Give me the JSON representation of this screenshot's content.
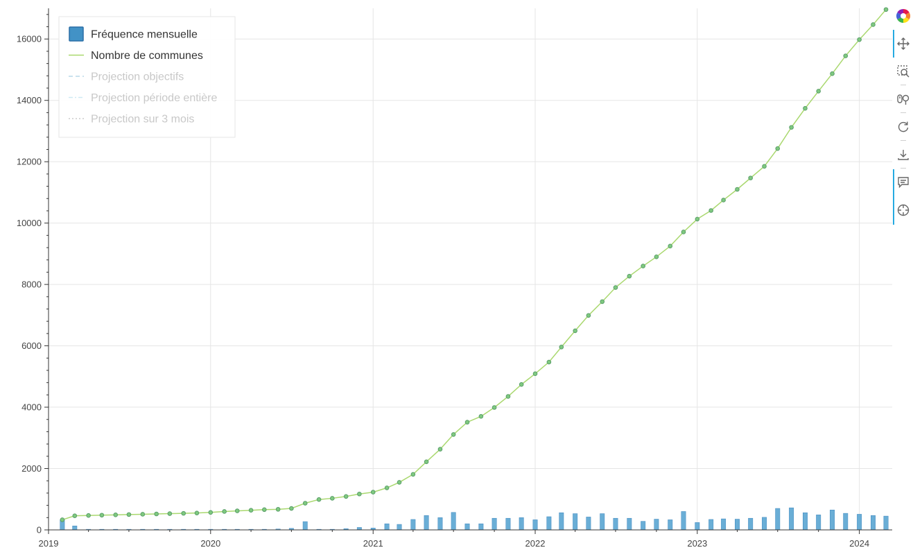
{
  "chart_data": {
    "type": "bar+line",
    "title": "",
    "xlabel": "",
    "ylabel": "",
    "x_axis": {
      "type": "datetime",
      "range": [
        "2019-01-01",
        "2024-03-15"
      ],
      "ticks": [
        {
          "date": "2019-01-01",
          "label": "2019"
        },
        {
          "date": "2020-01-01",
          "label": "2020"
        },
        {
          "date": "2021-01-01",
          "label": "2021"
        },
        {
          "date": "2022-01-01",
          "label": "2022"
        },
        {
          "date": "2023-01-01",
          "label": "2023"
        },
        {
          "date": "2024-01-01",
          "label": "2024"
        }
      ]
    },
    "y_axis": {
      "range": [
        0,
        17000
      ],
      "ticks": [
        {
          "value": 0,
          "label": "0"
        },
        {
          "value": 2000,
          "label": "2000"
        },
        {
          "value": 4000,
          "label": "4000"
        },
        {
          "value": 6000,
          "label": "6000"
        },
        {
          "value": 8000,
          "label": "8000"
        },
        {
          "value": 10000,
          "label": "10000"
        },
        {
          "value": 12000,
          "label": "12000"
        },
        {
          "value": 14000,
          "label": "14000"
        },
        {
          "value": 16000,
          "label": "16000"
        }
      ]
    },
    "grid": true,
    "legend_position": "top-left",
    "legend": [
      {
        "label": "Fréquence mensuelle",
        "glyph": "box",
        "color": "#4292c6",
        "muted": false
      },
      {
        "label": "Nombre de communes",
        "glyph": "line",
        "color": "#a9d86e",
        "muted": false
      },
      {
        "label": "Projection objectifs",
        "glyph": "dashed",
        "color": "#b9d8e8",
        "muted": true
      },
      {
        "label": "Projection période entière",
        "glyph": "dashdot",
        "color": "#cfe9f3",
        "muted": true
      },
      {
        "label": "Projection sur 3 mois",
        "glyph": "dotted",
        "color": "#cccccc",
        "muted": true
      }
    ],
    "colors": {
      "bar": "#6aaed6",
      "bar_stroke": "#3f87bf",
      "line": "#a9d86e",
      "marker_fill": "#7fc97f",
      "marker_stroke": "#5a9e6a"
    },
    "months": [
      "2019-02",
      "2019-03",
      "2019-04",
      "2019-05",
      "2019-06",
      "2019-07",
      "2019-08",
      "2019-09",
      "2019-10",
      "2019-11",
      "2019-12",
      "2020-01",
      "2020-02",
      "2020-03",
      "2020-04",
      "2020-05",
      "2020-06",
      "2020-07",
      "2020-08",
      "2020-09",
      "2020-10",
      "2020-11",
      "2020-12",
      "2021-01",
      "2021-02",
      "2021-03",
      "2021-04",
      "2021-05",
      "2021-06",
      "2021-07",
      "2021-08",
      "2021-09",
      "2021-10",
      "2021-11",
      "2021-12",
      "2022-01",
      "2022-02",
      "2022-03",
      "2022-04",
      "2022-05",
      "2022-06",
      "2022-07",
      "2022-08",
      "2022-09",
      "2022-10",
      "2022-11",
      "2022-12",
      "2023-01",
      "2023-02",
      "2023-03",
      "2023-04",
      "2023-05",
      "2023-06",
      "2023-07",
      "2023-08",
      "2023-09",
      "2023-10",
      "2023-11",
      "2023-12",
      "2024-01",
      "2024-02",
      "2024-03"
    ],
    "series": [
      {
        "name": "Fréquence mensuelle",
        "kind": "bar",
        "values": [
          330,
          130,
          20,
          20,
          20,
          20,
          20,
          20,
          20,
          20,
          20,
          20,
          20,
          20,
          20,
          20,
          30,
          50,
          270,
          20,
          20,
          40,
          80,
          60,
          200,
          180,
          340,
          470,
          400,
          570,
          200,
          200,
          380,
          380,
          400,
          330,
          430,
          560,
          530,
          420,
          530,
          380,
          380,
          280,
          350,
          330,
          600,
          240,
          340,
          360,
          350,
          380,
          410,
          700,
          720,
          560,
          490,
          650,
          540,
          510,
          470,
          450
        ]
      },
      {
        "name": "Nombre de communes",
        "kind": "line",
        "values": [
          330,
          460,
          470,
          480,
          490,
          500,
          510,
          520,
          530,
          540,
          550,
          570,
          600,
          620,
          640,
          660,
          670,
          700,
          870,
          990,
          1030,
          1090,
          1170,
          1230,
          1370,
          1550,
          1810,
          2220,
          2630,
          3110,
          3510,
          3700,
          3990,
          4350,
          4740,
          5090,
          5470,
          5960,
          6490,
          6990,
          7440,
          7900,
          8270,
          8600,
          8900,
          9250,
          9710,
          10130,
          10410,
          10750,
          11100,
          11470,
          11850,
          12430,
          13120,
          13740,
          14300,
          14870,
          15450,
          15980,
          16470,
          16960
        ]
      }
    ]
  },
  "toolbar": {
    "logo_icon": "bokeh-logo-icon",
    "tools": [
      {
        "icon": "pan-icon",
        "active": true
      },
      {
        "icon": "box-zoom-icon",
        "active": false
      },
      {
        "icon": "wheel-zoom-icon",
        "active": false
      },
      {
        "icon": "reset-icon",
        "active": false
      },
      {
        "icon": "save-icon",
        "active": false
      },
      {
        "icon": "hover-icon",
        "active": true
      },
      {
        "icon": "crosshair-icon",
        "active": true
      }
    ]
  }
}
